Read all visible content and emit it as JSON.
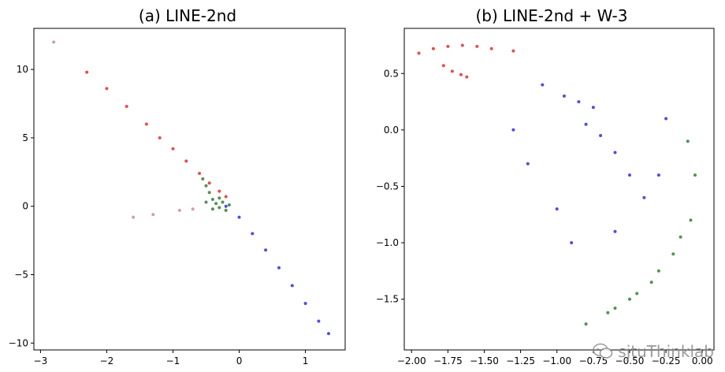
{
  "chart_data": [
    {
      "type": "scatter",
      "title": "(a) LINE-2nd",
      "xlim": [
        -3.1,
        1.6
      ],
      "ylim": [
        -10.5,
        13.0
      ],
      "xticks": [
        -3,
        -2,
        -1,
        0,
        1
      ],
      "xtick_labels": [
        "−3",
        "−2",
        "−1",
        "0",
        "1"
      ],
      "yticks": [
        -10,
        -5,
        0,
        5,
        10
      ],
      "ytick_labels": [
        "−10",
        "−5",
        "0",
        "5",
        "10"
      ],
      "grid": false,
      "series": [
        {
          "color": "#e01010",
          "points": [
            [
              -2.3,
              9.8
            ],
            [
              -2.0,
              8.6
            ],
            [
              -1.7,
              7.3
            ],
            [
              -1.4,
              6.0
            ],
            [
              -1.2,
              5.0
            ],
            [
              -1.0,
              4.2
            ],
            [
              -0.8,
              3.3
            ],
            [
              -0.6,
              2.4
            ],
            [
              -0.45,
              1.7
            ],
            [
              -0.3,
              1.1
            ],
            [
              -0.2,
              0.7
            ]
          ]
        },
        {
          "color": "#1a6b1a",
          "points": [
            [
              -0.55,
              2.0
            ],
            [
              -0.5,
              1.5
            ],
            [
              -0.45,
              1.0
            ],
            [
              -0.4,
              0.5
            ],
            [
              -0.35,
              0.2
            ],
            [
              -0.3,
              -0.1
            ],
            [
              -0.25,
              0.3
            ],
            [
              -0.2,
              -0.3
            ],
            [
              -0.15,
              0.1
            ],
            [
              -0.5,
              0.3
            ],
            [
              -0.4,
              -0.2
            ],
            [
              -0.3,
              0.6
            ]
          ]
        },
        {
          "color": "#1010e0",
          "points": [
            [
              -0.2,
              0.0
            ],
            [
              0.0,
              -0.8
            ],
            [
              0.2,
              -2.0
            ],
            [
              0.4,
              -3.2
            ],
            [
              0.6,
              -4.5
            ],
            [
              0.8,
              -5.8
            ],
            [
              1.0,
              -7.1
            ],
            [
              1.2,
              -8.4
            ],
            [
              1.35,
              -9.3
            ]
          ]
        },
        {
          "color": "#c08080",
          "points": [
            [
              -1.6,
              -0.8
            ],
            [
              -1.3,
              -0.6
            ],
            [
              -0.9,
              -0.3
            ],
            [
              -0.7,
              -0.2
            ],
            [
              -2.8,
              12.0
            ]
          ]
        }
      ]
    },
    {
      "type": "scatter",
      "title": "(b) LINE-2nd + W-3",
      "xlim": [
        -2.05,
        0.08
      ],
      "ylim": [
        -1.95,
        0.9
      ],
      "xticks": [
        -2.0,
        -1.75,
        -1.5,
        -1.25,
        -1.0,
        -0.75,
        -0.5,
        -0.25,
        0.0
      ],
      "xtick_labels": [
        "−2.00",
        "−1.75",
        "−1.50",
        "−1.25",
        "−1.00",
        "−0.75",
        "−0.50",
        "−0.25",
        "0.00"
      ],
      "yticks": [
        0.5,
        0.0,
        -0.5,
        -1.0,
        -1.5
      ],
      "ytick_labels": [
        "0.5",
        "0.0",
        "−0.5",
        "−1.0",
        "−1.5"
      ],
      "grid": false,
      "series": [
        {
          "color": "#e01010",
          "points": [
            [
              -1.95,
              0.68
            ],
            [
              -1.85,
              0.72
            ],
            [
              -1.75,
              0.74
            ],
            [
              -1.65,
              0.75
            ],
            [
              -1.55,
              0.74
            ],
            [
              -1.78,
              0.57
            ],
            [
              -1.72,
              0.52
            ],
            [
              -1.66,
              0.49
            ],
            [
              -1.62,
              0.47
            ],
            [
              -1.45,
              0.72
            ],
            [
              -1.3,
              0.7
            ]
          ]
        },
        {
          "color": "#1010e0",
          "points": [
            [
              -1.1,
              0.4
            ],
            [
              -0.95,
              0.3
            ],
            [
              -0.85,
              0.25
            ],
            [
              -0.75,
              0.2
            ],
            [
              -0.8,
              0.05
            ],
            [
              -0.7,
              -0.05
            ],
            [
              -0.6,
              -0.2
            ],
            [
              -0.5,
              -0.4
            ],
            [
              -0.4,
              -0.6
            ],
            [
              -1.3,
              0.0
            ],
            [
              -1.2,
              -0.3
            ],
            [
              -1.0,
              -0.7
            ],
            [
              -0.9,
              -1.0
            ],
            [
              -0.6,
              -0.9
            ],
            [
              -0.3,
              -0.4
            ],
            [
              -0.25,
              0.1
            ]
          ]
        },
        {
          "color": "#1a6b1a",
          "points": [
            [
              -0.1,
              -0.1
            ],
            [
              -0.05,
              -0.4
            ],
            [
              -0.08,
              -0.8
            ],
            [
              -0.2,
              -1.1
            ],
            [
              -0.35,
              -1.35
            ],
            [
              -0.5,
              -1.5
            ],
            [
              -0.65,
              -1.62
            ],
            [
              -0.8,
              -1.72
            ],
            [
              -0.3,
              -1.25
            ],
            [
              -0.45,
              -1.45
            ],
            [
              -0.6,
              -1.58
            ],
            [
              -0.15,
              -0.95
            ]
          ]
        }
      ]
    }
  ],
  "watermark": {
    "text": "sjtuThinklab",
    "icon": "wechat-icon"
  }
}
